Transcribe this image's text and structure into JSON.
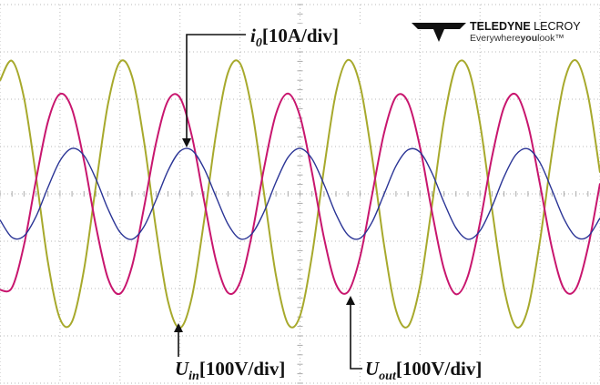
{
  "chart_data": {
    "type": "line",
    "logo": {
      "brand_bold": "TELEDYNE",
      "brand": "LECROY",
      "tagline_start": "Everywhere",
      "tagline_bold": "you",
      "tagline_end": "look™"
    },
    "x": [
      0,
      0.2,
      0.4,
      0.6,
      0.8,
      1,
      1.2,
      1.4,
      1.6,
      1.8,
      2,
      2.2,
      2.4,
      2.6,
      2.8,
      3,
      3.2,
      3.4,
      3.6,
      3.8,
      4,
      4.2,
      4.4,
      4.6,
      4.8,
      5,
      5.2,
      5.4,
      5.6,
      5.8,
      6,
      6.2,
      6.4,
      6.6,
      6.8,
      7,
      7.2,
      7.4,
      7.6,
      7.8,
      8,
      8.2,
      8.4,
      8.6,
      8.8,
      9,
      9.2,
      9.4,
      9.6,
      9.8,
      10
    ],
    "xlim": [
      0,
      10
    ],
    "ylim": [
      -4,
      4
    ],
    "grid": true,
    "series": [
      {
        "label": {
          "main": "U",
          "sub": "in",
          "unit": "[100V/div]"
        },
        "color": "#a7a92c",
        "values": [
          2.39,
          2.81,
          2.03,
          0.37,
          -1.45,
          -2.64,
          -2.7,
          -1.6,
          0.19,
          1.9,
          2.79,
          2.48,
          1.11,
          -0.74,
          -2.27,
          -2.83,
          -2.17,
          -0.58,
          1.26,
          2.56,
          2.76,
          1.77,
          0.02,
          -1.73,
          -2.75,
          -2.58,
          -1.3,
          0.53,
          2.14,
          2.83,
          2.3,
          0.79,
          -1.07,
          -2.46,
          -2.8,
          -1.94,
          -0.24,
          1.56,
          2.69,
          2.66,
          1.49,
          -0.32,
          -1.99,
          -2.81,
          -2.42,
          -0.99,
          0.86,
          2.35,
          2.82,
          2.08,
          0.45
        ]
      },
      {
        "label": {
          "main": "U",
          "sub": "out",
          "unit": "[100V/div]"
        },
        "color": "#c8166e",
        "values": [
          -2.03,
          -1.98,
          -1.08,
          0.29,
          1.53,
          2.11,
          1.79,
          0.7,
          -0.69,
          -1.79,
          -2.11,
          -1.53,
          -0.29,
          1.07,
          1.97,
          2.03,
          1.21,
          -0.13,
          -1.41,
          -2.09,
          -1.87,
          -0.85,
          0.54,
          1.69,
          2.12,
          1.64,
          0.45,
          -0.93,
          -1.91,
          -2.07,
          -1.34,
          -0.03,
          1.28,
          2.05,
          1.94,
          0.99,
          -0.38,
          -1.59,
          -2.12,
          -1.73,
          -0.61,
          0.78,
          1.83,
          2.1,
          1.46,
          0.2,
          -1.15,
          -2.01,
          -2.0,
          -1.13,
          0.22
        ]
      },
      {
        "label": {
          "main": "i",
          "sub": "0",
          "unit": "[10A/div]"
        },
        "color": "#2b3596",
        "values": [
          -0.55,
          -0.92,
          -0.89,
          -0.48,
          0.14,
          0.7,
          0.96,
          0.81,
          0.31,
          -0.32,
          -0.81,
          -0.96,
          -0.69,
          -0.13,
          0.49,
          0.9,
          0.92,
          0.54,
          -0.06,
          -0.64,
          -0.95,
          -0.84,
          -0.38,
          0.25,
          0.77,
          0.96,
          0.74,
          0.2,
          -0.43,
          -0.87,
          -0.94,
          -0.6,
          -0.01,
          0.59,
          0.93,
          0.88,
          0.44,
          -0.18,
          -0.72,
          -0.96,
          -0.78,
          -0.27,
          0.36,
          0.83,
          0.95,
          0.66,
          0.08,
          -0.53,
          -0.91,
          -0.9,
          -0.51
        ]
      }
    ]
  }
}
